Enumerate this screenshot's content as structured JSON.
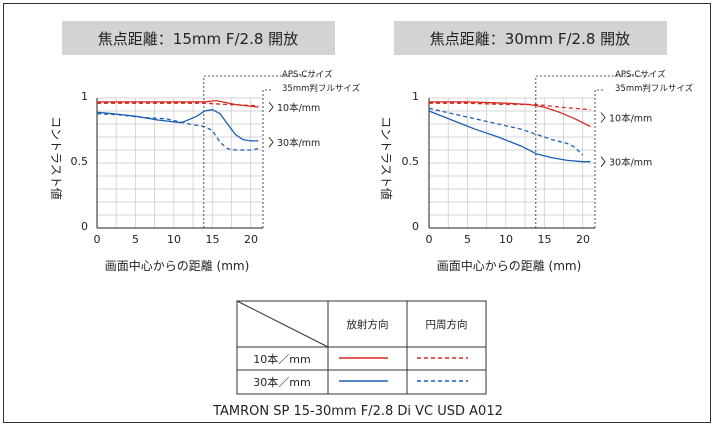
{
  "chart_data": [
    {
      "type": "line",
      "title": "焦点距離：15mm F/2.8 開放",
      "xlabel": "画面中心からの距離 (mm)",
      "ylabel": "コントラスト値",
      "xlim": [
        0,
        21.6
      ],
      "ylim": [
        0,
        1
      ],
      "xticks": [
        "0",
        "5",
        "10",
        "15",
        "20"
      ],
      "yticks": [
        "0",
        "0.5",
        "1"
      ],
      "grid": true,
      "annotations": {
        "apsc": "APS-Cサイズ",
        "ff": "35mm判フルサイズ",
        "apsc_x": 13.9,
        "ff_x": 21.6
      },
      "series": [
        {
          "name": "10本/mm 放射方向",
          "style": "solid",
          "color": "#d42a20",
          "x": [
            0,
            5,
            10,
            14,
            15.5,
            18,
            21
          ],
          "y": [
            0.97,
            0.97,
            0.97,
            0.97,
            0.98,
            0.95,
            0.93
          ]
        },
        {
          "name": "10本/mm 円周方向",
          "style": "dashed",
          "color": "#d42a20",
          "x": [
            0,
            5,
            10,
            14,
            17,
            21
          ],
          "y": [
            0.96,
            0.96,
            0.96,
            0.96,
            0.95,
            0.94
          ]
        },
        {
          "name": "30本/mm 放射方向",
          "style": "solid",
          "color": "#1a5fb5",
          "x": [
            0,
            2,
            5,
            8,
            11,
            13,
            14,
            15,
            16,
            17,
            18,
            19,
            20,
            21
          ],
          "y": [
            0.89,
            0.88,
            0.86,
            0.83,
            0.81,
            0.86,
            0.9,
            0.91,
            0.88,
            0.8,
            0.72,
            0.68,
            0.67,
            0.67
          ]
        },
        {
          "name": "30本/mm 円周方向",
          "style": "dashed",
          "color": "#1a5fb5",
          "x": [
            0,
            3,
            6,
            9,
            12,
            14,
            15,
            16,
            17,
            18,
            20,
            21
          ],
          "y": [
            0.88,
            0.87,
            0.85,
            0.84,
            0.8,
            0.78,
            0.75,
            0.66,
            0.61,
            0.6,
            0.6,
            0.61
          ]
        }
      ],
      "labels": [
        {
          "text": "10本/mm",
          "target_y": 0.93
        },
        {
          "text": "30本/mm",
          "target_y": 0.66
        }
      ]
    },
    {
      "type": "line",
      "title": "焦点距離：30mm F/2.8 開放",
      "xlabel": "画面中心からの距離 (mm)",
      "ylabel": "コントラスト値",
      "xlim": [
        0,
        21.6
      ],
      "ylim": [
        0,
        1
      ],
      "xticks": [
        "0",
        "5",
        "10",
        "15",
        "20"
      ],
      "yticks": [
        "0",
        "0.5",
        "1"
      ],
      "grid": true,
      "annotations": {
        "apsc": "APS-Cサイズ",
        "ff": "35mm判フルサイズ",
        "apsc_x": 13.9,
        "ff_x": 21.6
      },
      "series": [
        {
          "name": "10本/mm 放射方向",
          "style": "solid",
          "color": "#d42a20",
          "x": [
            0,
            5,
            10,
            13,
            15,
            17,
            19,
            21
          ],
          "y": [
            0.97,
            0.97,
            0.96,
            0.95,
            0.93,
            0.89,
            0.84,
            0.78
          ]
        },
        {
          "name": "10本/mm 円周方向",
          "style": "dashed",
          "color": "#d42a20",
          "x": [
            0,
            5,
            10,
            14,
            17,
            21
          ],
          "y": [
            0.96,
            0.96,
            0.95,
            0.95,
            0.93,
            0.91
          ]
        },
        {
          "name": "30本/mm 放射方向",
          "style": "solid",
          "color": "#1a5fb5",
          "x": [
            0,
            3,
            6,
            9,
            12,
            14,
            16,
            18,
            20,
            21
          ],
          "y": [
            0.9,
            0.83,
            0.76,
            0.7,
            0.63,
            0.57,
            0.54,
            0.52,
            0.51,
            0.51
          ]
        },
        {
          "name": "30本/mm 円周方向",
          "style": "dashed",
          "color": "#1a5fb5",
          "x": [
            0,
            3,
            6,
            9,
            12,
            14,
            16,
            18,
            19,
            20
          ],
          "y": [
            0.92,
            0.88,
            0.84,
            0.8,
            0.76,
            0.72,
            0.68,
            0.65,
            0.62,
            0.56
          ]
        }
      ],
      "labels": [
        {
          "text": "10本/mm",
          "target_y": 0.85
        },
        {
          "text": "30本/mm",
          "target_y": 0.51
        }
      ]
    }
  ],
  "legend": {
    "col_radial": "放射方向",
    "col_tangential": "円周方向",
    "rows": [
      {
        "label": "10本／mm",
        "color": "#d42a20"
      },
      {
        "label": "30本／mm",
        "color": "#1a5fb5"
      }
    ]
  },
  "footer": "TAMRON SP 15-30mm F/2.8 Di VC USD A012"
}
